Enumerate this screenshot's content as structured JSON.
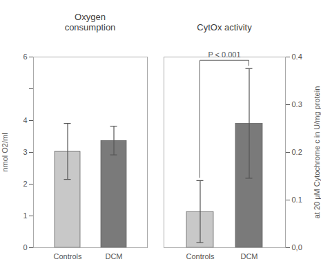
{
  "chart_data": [
    {
      "type": "bar",
      "title": "Oxygen\nconsumption",
      "ylabel": "nmol O2/ml",
      "categories": [
        "Controls",
        "DCM"
      ],
      "values": [
        3.02,
        3.36
      ],
      "errors": [
        0.88,
        0.45
      ],
      "colors": [
        "#c8c8c8",
        "#7a7a7a"
      ],
      "ylim": [
        0,
        6
      ],
      "yticks": [
        0,
        1,
        2,
        3,
        4,
        {
          "value": 5,
          "label": ""
        },
        6
      ],
      "grid": false
    },
    {
      "type": "bar",
      "title": "CytOx activity",
      "ylabel": "at 20 μM Cytochrome c in U/mg protein",
      "categories": [
        "Controls",
        "DCM"
      ],
      "values": [
        0.075,
        0.26
      ],
      "errors": [
        0.065,
        0.115
      ],
      "colors": [
        "#c8c8c8",
        "#7a7a7a"
      ],
      "ylim": [
        0,
        0.4
      ],
      "yticks": [
        {
          "value": 0,
          "label": "0,0"
        },
        0.1,
        0.2,
        0.3,
        0.4
      ],
      "annotations": [
        {
          "text": "P < 0.001"
        }
      ],
      "grid": false
    }
  ]
}
